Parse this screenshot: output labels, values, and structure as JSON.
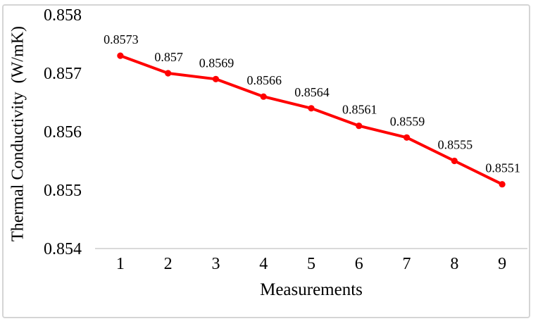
{
  "figure": {
    "border_color": "#d5d5d5",
    "background_color": "#ffffff"
  },
  "chart_data": {
    "type": "line",
    "title": "",
    "xlabel": "Measurements",
    "ylabel": "Thermal Conductivity  (W/mK)",
    "categories": [
      "1",
      "2",
      "3",
      "4",
      "5",
      "6",
      "7",
      "8",
      "9"
    ],
    "series": [
      {
        "name": "Thermal Conductivity",
        "values": [
          0.8573,
          0.857,
          0.8569,
          0.8566,
          0.8564,
          0.8561,
          0.8559,
          0.8555,
          0.8551
        ]
      }
    ],
    "point_labels": [
      "0.8573",
      "0.857",
      "0.8569",
      "0.8566",
      "0.8564",
      "0.8561",
      "0.8559",
      "0.8555",
      "0.8551"
    ],
    "yticks": [
      0.858,
      0.857,
      0.856,
      0.855,
      0.854
    ],
    "ytick_labels": [
      "0.858",
      "0.857",
      "0.856",
      "0.855",
      "0.854"
    ],
    "ylim": [
      0.854,
      0.858
    ],
    "grid": false,
    "legend_position": "none",
    "marker": "circle",
    "line_color": "#ff0000",
    "marker_color": "#ff0000",
    "axis_line_color": "#d9d9d9",
    "text_color": "#000000"
  }
}
